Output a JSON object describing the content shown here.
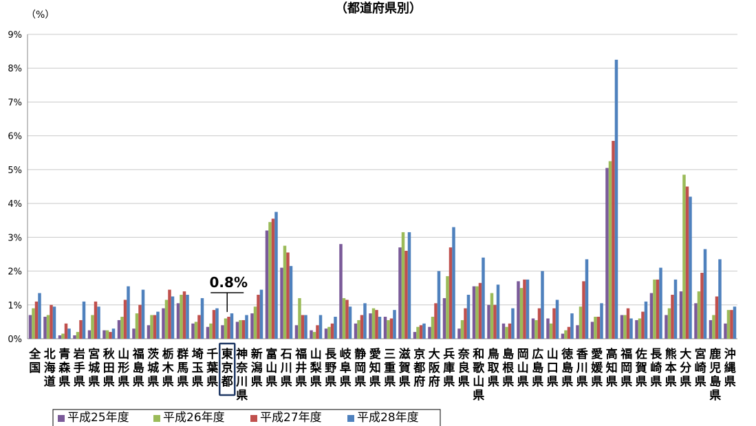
{
  "chart_data": {
    "type": "bar",
    "title": "（都道府県別）",
    "ylabel": "（%）",
    "ylim": [
      0,
      9
    ],
    "yticks": [
      "0%",
      "1%",
      "2%",
      "3%",
      "4%",
      "5%",
      "6%",
      "7%",
      "8%",
      "9%"
    ],
    "grid": true,
    "legend_position": "bottom",
    "categories": [
      "全国",
      "北海道",
      "青森県",
      "岩手県",
      "宮城県",
      "秋田県",
      "山形県",
      "福島県",
      "茨城県",
      "栃木県",
      "群馬県",
      "埼玉県",
      "千葉県",
      "東京都",
      "神奈川県",
      "新潟県",
      "富山県",
      "石川県",
      "福井県",
      "山梨県",
      "長野県",
      "岐阜県",
      "静岡県",
      "愛知県",
      "三重県",
      "滋賀県",
      "京都府",
      "大阪府",
      "兵庫県",
      "奈良県",
      "和歌山県",
      "鳥取県",
      "島根県",
      "岡山県",
      "広島県",
      "山口県",
      "徳島県",
      "香川県",
      "愛媛県",
      "高知県",
      "福岡県",
      "佐賀県",
      "長崎県",
      "熊本県",
      "大分県",
      "宮崎県",
      "鹿児島県",
      "沖縄県"
    ],
    "highlight": {
      "category": "東京都",
      "label": "0.8%"
    },
    "series": [
      {
        "name": "平成25年度",
        "color": "#7A5A99",
        "values": [
          0.7,
          0.65,
          0.1,
          0.1,
          0.25,
          0.25,
          0.55,
          0.3,
          0.4,
          0.9,
          1.05,
          0.45,
          0.35,
          0.4,
          0.5,
          0.75,
          3.2,
          2.1,
          0.4,
          0.25,
          0.3,
          2.8,
          0.45,
          0.75,
          0.65,
          2.7,
          0.2,
          0.35,
          1.2,
          0.3,
          1.55,
          1.0,
          0.45,
          1.7,
          0.6,
          0.6,
          0.15,
          0.4,
          0.5,
          5.05,
          0.7,
          0.55,
          1.35,
          0.7,
          1.4,
          1.05,
          0.55,
          0.45
        ]
      },
      {
        "name": "平成26年度",
        "color": "#9BBB59",
        "values": [
          0.9,
          0.7,
          0.15,
          0.2,
          0.7,
          0.25,
          0.65,
          0.75,
          0.7,
          1.15,
          1.3,
          0.5,
          0.45,
          0.6,
          0.55,
          0.95,
          3.45,
          2.75,
          1.2,
          0.2,
          0.35,
          1.2,
          0.55,
          0.9,
          0.55,
          3.15,
          0.35,
          0.65,
          1.85,
          0.55,
          1.55,
          1.35,
          0.35,
          1.5,
          0.55,
          0.45,
          0.25,
          0.95,
          0.65,
          5.25,
          0.7,
          0.6,
          1.75,
          0.9,
          4.85,
          1.4,
          0.7,
          0.85
        ]
      },
      {
        "name": "平成27年度",
        "color": "#C0504D",
        "values": [
          1.1,
          1.0,
          0.45,
          0.55,
          1.1,
          0.2,
          1.15,
          1.0,
          0.7,
          1.45,
          1.4,
          0.7,
          0.85,
          0.65,
          0.55,
          1.3,
          3.55,
          2.55,
          0.7,
          0.4,
          0.45,
          1.15,
          0.7,
          0.85,
          0.6,
          2.6,
          0.4,
          1.05,
          2.7,
          0.9,
          1.65,
          1.0,
          0.45,
          1.75,
          0.9,
          0.9,
          0.35,
          1.7,
          0.65,
          5.85,
          0.9,
          0.8,
          1.75,
          1.3,
          4.5,
          1.95,
          1.25,
          0.85
        ]
      },
      {
        "name": "平成28年度",
        "color": "#4F81BD",
        "values": [
          1.35,
          0.95,
          0.3,
          1.1,
          0.95,
          0.3,
          1.55,
          1.45,
          0.8,
          1.25,
          1.3,
          1.2,
          0.9,
          0.75,
          0.7,
          1.45,
          3.75,
          2.15,
          0.7,
          0.7,
          0.65,
          0.95,
          1.05,
          0.65,
          0.85,
          3.15,
          0.45,
          2.0,
          3.3,
          1.3,
          2.4,
          1.6,
          0.9,
          1.75,
          2.0,
          1.15,
          0.75,
          2.35,
          1.05,
          8.25,
          0.6,
          1.1,
          2.1,
          1.75,
          4.2,
          2.65,
          2.35,
          0.95
        ]
      }
    ]
  }
}
